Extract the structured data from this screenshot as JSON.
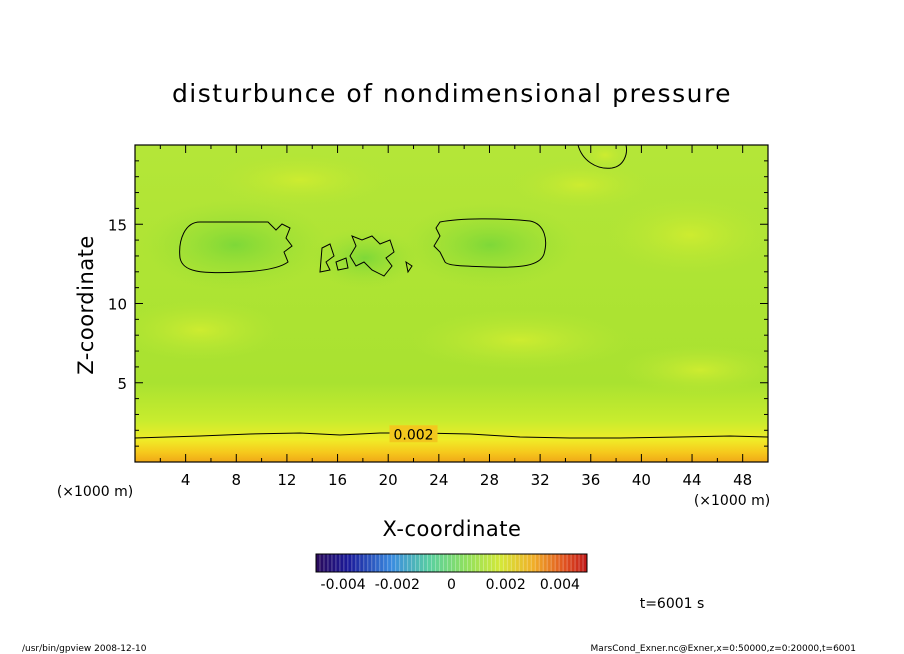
{
  "chart_data": {
    "type": "heatmap",
    "title": "disturbunce of nondimensional pressure",
    "xlabel": "X-coordinate",
    "ylabel": "Z-coordinate",
    "x_unit": "(×1000 m)",
    "y_unit": "(×1000 m)",
    "xlim": [
      0,
      50
    ],
    "ylim": [
      0,
      20
    ],
    "xticks": [
      4,
      8,
      12,
      16,
      20,
      24,
      28,
      32,
      36,
      40,
      44,
      48
    ],
    "yticks": [
      5,
      10,
      15
    ],
    "contour_labels": [
      {
        "text": "0.002",
        "x": 22,
        "z": 1.75
      }
    ],
    "colorbar": {
      "range": [
        -0.005,
        0.005
      ],
      "tick_labels": [
        "-0.004",
        "-0.002",
        "0",
        "0.002",
        "0.004"
      ],
      "tick_values": [
        -0.004,
        -0.002,
        0,
        0.002,
        0.004
      ]
    },
    "grid": false,
    "legend": "bottom-center colorbar"
  },
  "time_label": "t=6001 s",
  "footer": {
    "left": "/usr/bin/gpview   2008-12-10",
    "right": "MarsCond_Exner.nc@Exner,x=0:50000,z=0:20000,t=6001"
  },
  "colors": {
    "field_base": "#a8e432",
    "bottom_band": "#f2b820",
    "axis": "#000000"
  }
}
